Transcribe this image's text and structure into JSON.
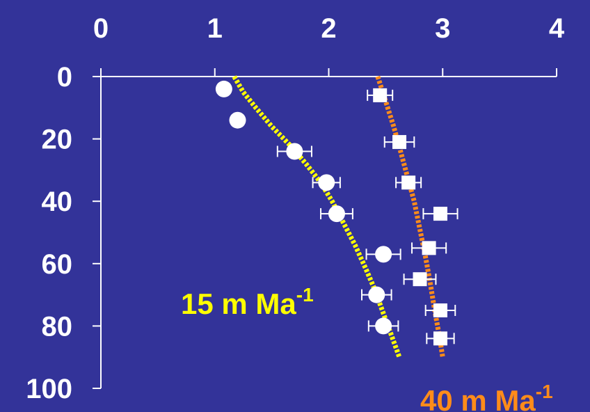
{
  "colors": {
    "background": "#333399",
    "axis": "#ffffff",
    "curve_15": "#ffff00",
    "curve_40": "#ff8c1a",
    "markers": "#ffffff"
  },
  "chart_data": {
    "type": "scatter",
    "x_axis": {
      "position": "top",
      "range": [
        0,
        4
      ],
      "ticks": [
        "0",
        "1",
        "2",
        "3",
        "4"
      ]
    },
    "y_axis": {
      "inverted": true,
      "range": [
        0,
        100
      ],
      "ticks": [
        "0",
        "20",
        "40",
        "60",
        "80",
        "100"
      ]
    },
    "grid": false,
    "series": [
      {
        "marker": "circle",
        "color": "#ffffff",
        "points": [
          {
            "x": 1.08,
            "y": 4
          },
          {
            "x": 1.2,
            "y": 14
          },
          {
            "x": 1.7,
            "y": 24,
            "xerr": 0.15
          },
          {
            "x": 1.98,
            "y": 34,
            "xerr": 0.12
          },
          {
            "x": 2.07,
            "y": 44,
            "xerr": 0.14
          },
          {
            "x": 2.48,
            "y": 57,
            "xerr": 0.15
          },
          {
            "x": 2.42,
            "y": 70,
            "xerr": 0.13
          },
          {
            "x": 2.48,
            "y": 80,
            "xerr": 0.13
          }
        ]
      },
      {
        "marker": "square",
        "color": "#ffffff",
        "points": [
          {
            "x": 2.45,
            "y": 6,
            "xerr": 0.11
          },
          {
            "x": 2.62,
            "y": 21,
            "xerr": 0.13
          },
          {
            "x": 2.7,
            "y": 34,
            "xerr": 0.11
          },
          {
            "x": 2.98,
            "y": 44,
            "xerr": 0.15
          },
          {
            "x": 2.88,
            "y": 55,
            "xerr": 0.15
          },
          {
            "x": 2.8,
            "y": 65,
            "xerr": 0.14
          },
          {
            "x": 2.98,
            "y": 75,
            "xerr": 0.13
          },
          {
            "x": 2.98,
            "y": 84,
            "xerr": 0.12
          }
        ]
      },
      {
        "kind": "curve",
        "color": "#ffff00",
        "style": "dotted",
        "label": {
          "text": "15 m Ma",
          "superscript": "-1"
        },
        "points": [
          {
            "x": 1.17,
            "y": 0
          },
          {
            "x": 1.25,
            "y": 5
          },
          {
            "x": 1.36,
            "y": 10
          },
          {
            "x": 1.5,
            "y": 16
          },
          {
            "x": 1.66,
            "y": 22
          },
          {
            "x": 1.8,
            "y": 28
          },
          {
            "x": 1.93,
            "y": 34
          },
          {
            "x": 2.03,
            "y": 40
          },
          {
            "x": 2.13,
            "y": 47
          },
          {
            "x": 2.23,
            "y": 54
          },
          {
            "x": 2.33,
            "y": 62
          },
          {
            "x": 2.4,
            "y": 68
          },
          {
            "x": 2.48,
            "y": 76
          },
          {
            "x": 2.55,
            "y": 83
          },
          {
            "x": 2.62,
            "y": 90
          }
        ]
      },
      {
        "kind": "curve",
        "color": "#ff8c1a",
        "style": "dotted",
        "label": {
          "text": "40 m Ma",
          "superscript": "-1"
        },
        "points": [
          {
            "x": 2.43,
            "y": 0
          },
          {
            "x": 2.5,
            "y": 8
          },
          {
            "x": 2.57,
            "y": 16
          },
          {
            "x": 2.63,
            "y": 24
          },
          {
            "x": 2.69,
            "y": 32
          },
          {
            "x": 2.75,
            "y": 40
          },
          {
            "x": 2.8,
            "y": 49
          },
          {
            "x": 2.85,
            "y": 58
          },
          {
            "x": 2.89,
            "y": 66
          },
          {
            "x": 2.93,
            "y": 75
          },
          {
            "x": 2.97,
            "y": 83
          },
          {
            "x": 3.0,
            "y": 90
          }
        ]
      }
    ]
  }
}
